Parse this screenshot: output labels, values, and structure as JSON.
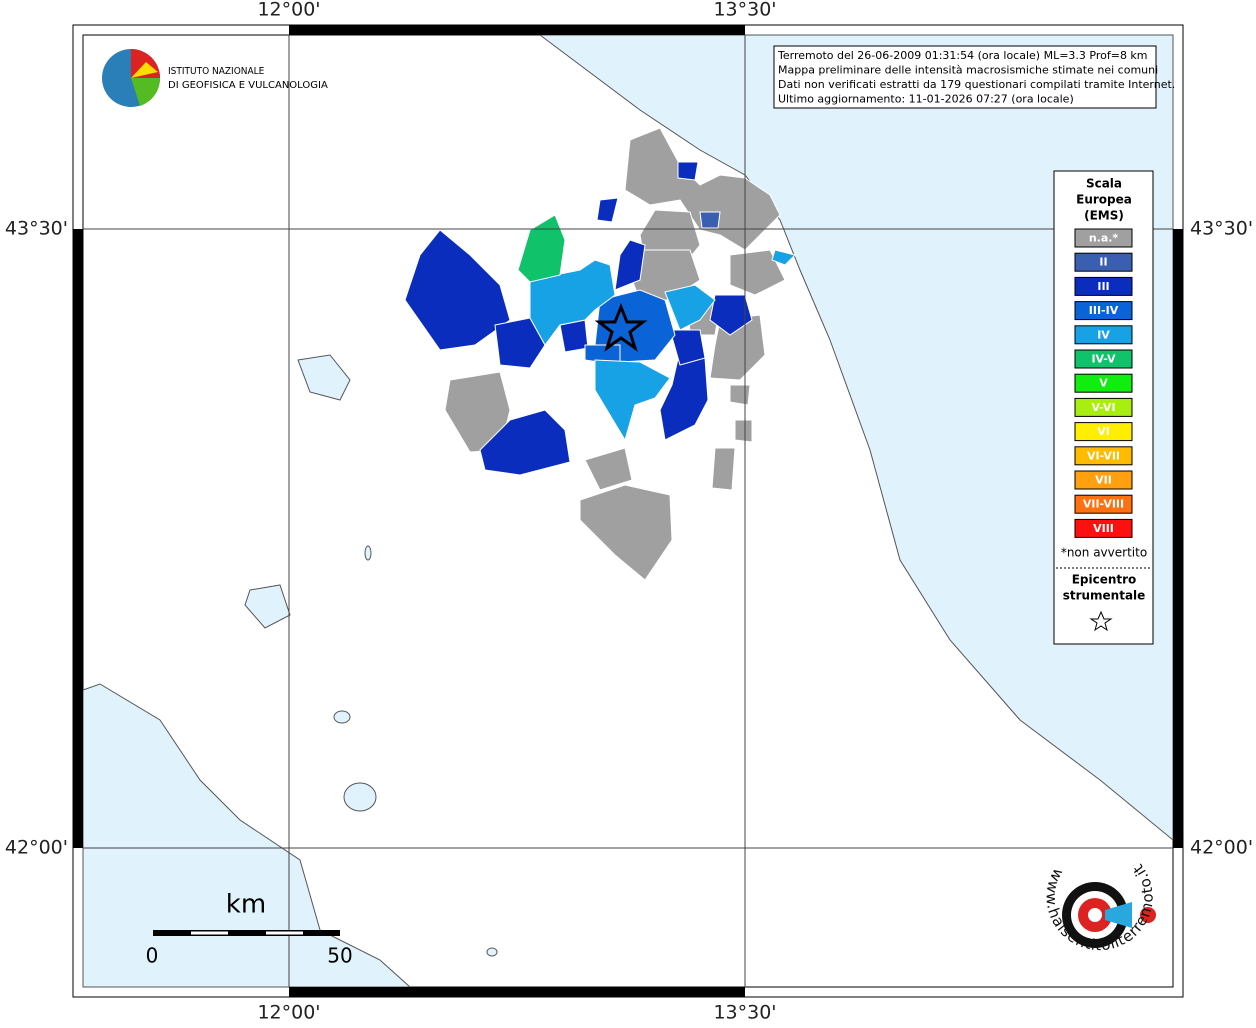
{
  "axes": {
    "top": [
      "12°00'",
      "13°30'"
    ],
    "bottom": [
      "12°00'",
      "13°30'"
    ],
    "left": [
      "43°30'",
      "42°00'"
    ],
    "right": [
      "43°30'",
      "42°00'"
    ]
  },
  "info": [
    "Terremoto del 26-06-2009 01:31:54 (ora locale) ML=3.3 Prof=8 km",
    "Mappa preliminare delle intensità macrosismiche stimate nei comuni",
    "Dati non verificati estratti da 179 questionari compilati tramite Internet.",
    "Ultimo aggiornamento: 11-01-2026 07:27 (ora locale)"
  ],
  "logo": [
    "ISTITUTO NAZIONALE",
    "DI GEOFISICA E VULCANOLOGIA"
  ],
  "legend": {
    "title": [
      "Scala",
      "Europea",
      "(EMS)"
    ],
    "items": [
      {
        "label": "n.a.*",
        "color": "#a0a0a0"
      },
      {
        "label": "II",
        "color": "#3a5fb0"
      },
      {
        "label": "III",
        "color": "#0a2dbd"
      },
      {
        "label": "III-IV",
        "color": "#0b63d8"
      },
      {
        "label": "IV",
        "color": "#17a2e6"
      },
      {
        "label": "IV-V",
        "color": "#10c26a"
      },
      {
        "label": "V",
        "color": "#10ee10"
      },
      {
        "label": "V-VI",
        "color": "#a8ee10"
      },
      {
        "label": "VI",
        "color": "#ffee00"
      },
      {
        "label": "VI-VII",
        "color": "#ffbb00"
      },
      {
        "label": "VII",
        "color": "#ffa010"
      },
      {
        "label": "VII-VIII",
        "color": "#ff7010"
      },
      {
        "label": "VIII",
        "color": "#ff1010"
      }
    ],
    "note": "*non avvertito",
    "epicenter": [
      "Epicentro",
      "strumentale"
    ]
  },
  "scale": {
    "unit": "km",
    "labels": [
      "0",
      "50"
    ]
  },
  "site": "www.haisentitoilterremoto.it"
}
